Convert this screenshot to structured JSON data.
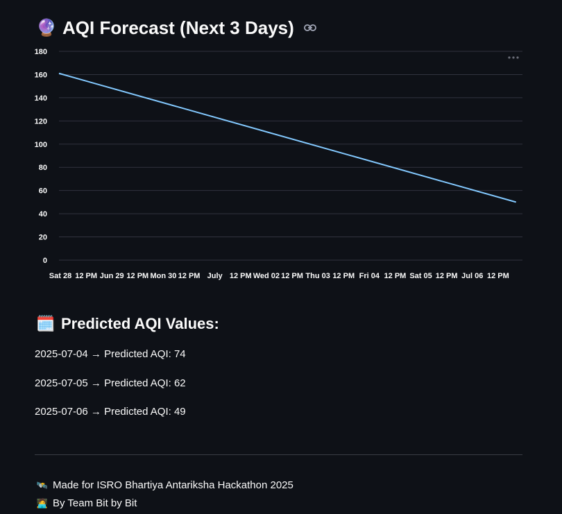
{
  "header": {
    "title": "AQI Forecast (Next 3 Days)",
    "title_icon": "crystal-ball-icon",
    "link_icon": "link-icon"
  },
  "chart_data": {
    "type": "line",
    "x_start": "2025-06-28T00:00",
    "x_end": "2025-07-07T00:00",
    "series": [
      {
        "x": [
          "2025-06-28T00:00",
          "2025-07-06T21:00"
        ],
        "y": [
          161,
          50
        ]
      }
    ],
    "ylim": [
      0,
      180
    ],
    "yticks": [
      0,
      20,
      40,
      60,
      80,
      100,
      120,
      140,
      160,
      180
    ],
    "xtick_labels": [
      "Sat 28",
      "12 PM",
      "Jun 29",
      "12 PM",
      "Mon 30",
      "12 PM",
      "July",
      "12 PM",
      "Wed 02",
      "12 PM",
      "Thu 03",
      "12 PM",
      "Fri 04",
      "12 PM",
      "Sat 05",
      "12 PM",
      "Jul 06",
      "12 PM"
    ],
    "grid": "horizontal",
    "line_color": "#83c9ff",
    "title": "",
    "xlabel": "",
    "ylabel": ""
  },
  "predictions": {
    "heading": "Predicted AQI Values:",
    "heading_icon": "calendar-icon",
    "items": [
      "2025-07-04 → Predicted AQI: 74",
      "2025-07-05 → Predicted AQI: 62",
      "2025-07-06 → Predicted AQI: 49"
    ]
  },
  "footer": {
    "line1": "Made for ISRO Bhartiya Antariksha Hackathon 2025",
    "line1_icon": "satellite-icon",
    "line2": "By Team Bit by Bit",
    "line2_icon": "technologist-icon"
  }
}
